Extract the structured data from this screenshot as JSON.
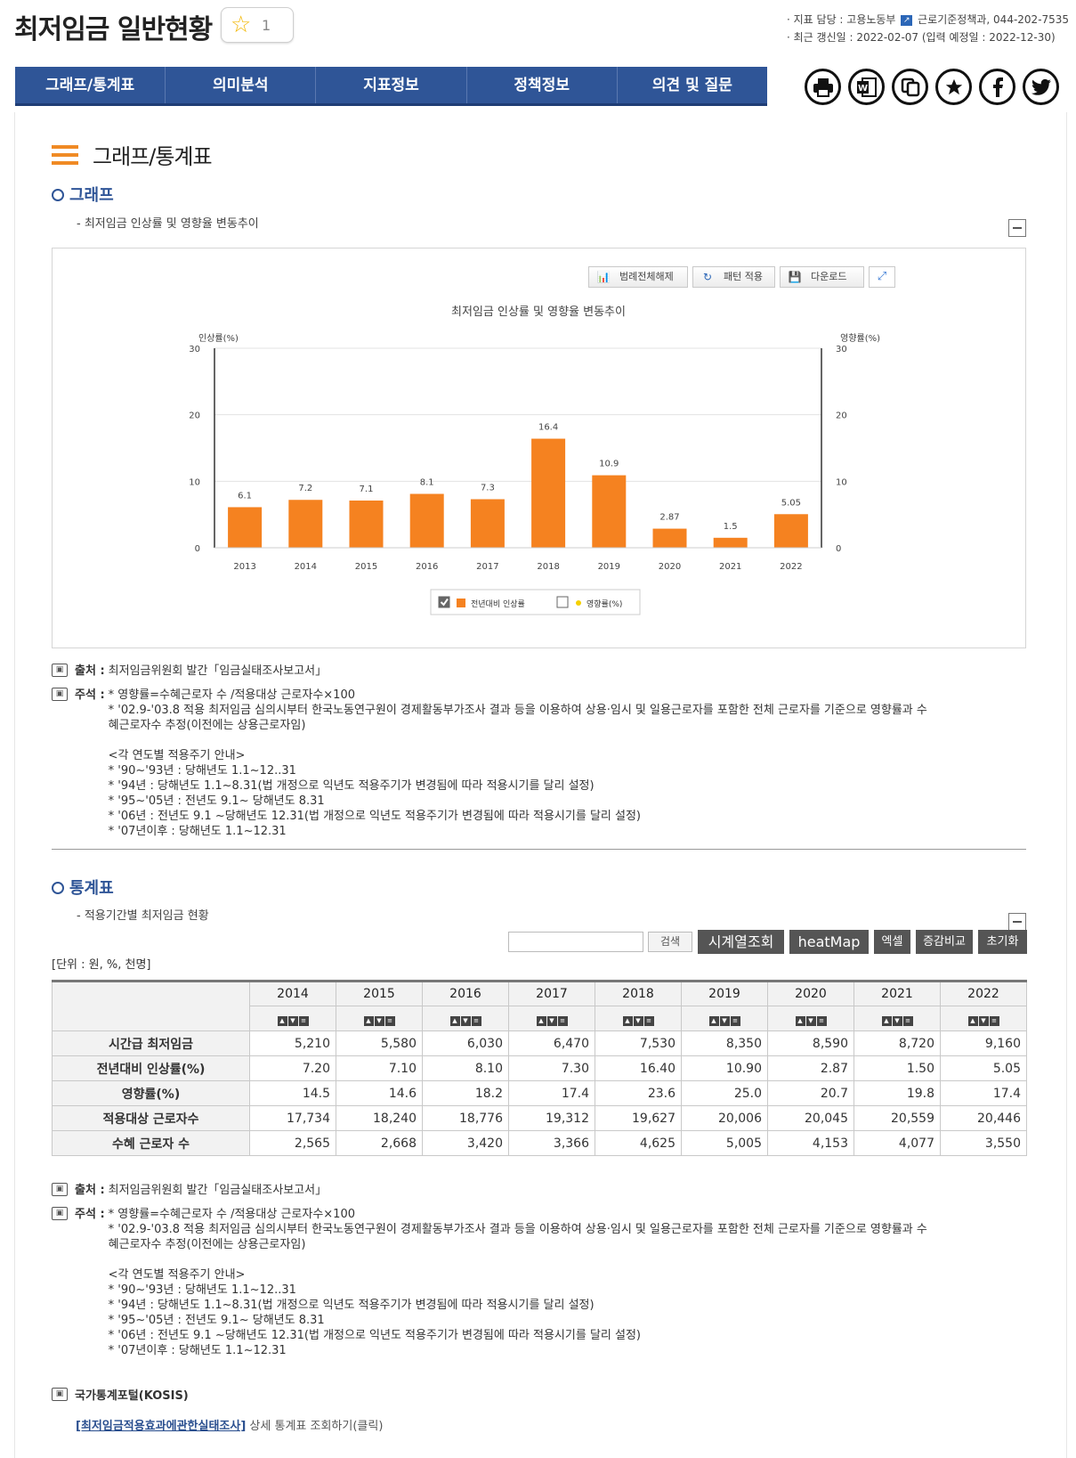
{
  "header": {
    "title": "최저임금 일반현황",
    "favorite_count": "1",
    "meta_line1_prefix": "· 지표 담당 : 고용노동부",
    "meta_line1_suffix": "근로기준정책과, 044-202-7535",
    "meta_line2": "· 최근 갱신일 : 2022-02-07 (입력 예정일 : 2022-12-30)"
  },
  "nav": {
    "tabs": [
      "그래프/통계표",
      "의미분석",
      "지표정보",
      "정책정보",
      "의견 및 질문"
    ]
  },
  "share_icons": [
    "print-icon",
    "word-icon",
    "copy-icon",
    "favorite-icon",
    "facebook-icon",
    "twitter-icon"
  ],
  "section_title": "그래프/통계표",
  "graph": {
    "heading": "그래프",
    "desc": "- 최저임금 인상률 및 영향율 변동추이",
    "tools": {
      "legend_off": "범례전체해제",
      "pattern": "패턴 적용",
      "download": "다운로드"
    }
  },
  "chart_data": {
    "type": "bar",
    "title": "최저임금 인상률 및 영향율 변동추이",
    "ylabel_left": "인상률(%)",
    "ylabel_right": "영향률(%)",
    "ylim": [
      0,
      30
    ],
    "yticks": [
      "0",
      "10",
      "20",
      "30"
    ],
    "categories": [
      "2013",
      "2014",
      "2015",
      "2016",
      "2017",
      "2018",
      "2019",
      "2020",
      "2021",
      "2022"
    ],
    "series": [
      {
        "name": "전년대비 인상률",
        "values": [
          6.1,
          7.2,
          7.1,
          8.1,
          7.3,
          16.4,
          10.9,
          2.87,
          1.5,
          5.05
        ],
        "labels": [
          "6.1",
          "7.2",
          "7.1",
          "8.1",
          "7.3",
          "16.4",
          "10.9",
          "2.87",
          "1.5",
          "5.05"
        ],
        "color": "#f58220",
        "checked": true
      },
      {
        "name": "영향률(%)",
        "color": "#f5d000",
        "checked": false
      }
    ],
    "grid": true,
    "legend_position": "bottom"
  },
  "notes": {
    "source_label": "출처 :",
    "source_text": "최저임금위원회 발간「임금실태조사보고서」",
    "note_label": "주석 :",
    "note_lines": [
      "* 영향률=수혜근로자 수 /적용대상 근로자수×100",
      "  * '02.9-'03.8 적용 최저임금 심의시부터 한국노동연구원이 경제활동부가조사 결과 등을 이용하여 상용·임시 및 일용근로자를 포함한 전체 근로자를 기준으로 영향률과 수",
      "  혜근로자수 추정(이전에는 상용근로자임)",
      "",
      "  <각 연도별 적용주기 안내>",
      "  * '90~'93년 : 당해년도 1.1~12..31",
      "  * '94년 : 당해년도 1.1~8.31(법 개정으로 익년도 적용주기가 변경됨에 따라 적용시기를 달리 설정)",
      "  * '95~'05년 : 전년도 9.1~ 당해년도 8.31",
      "  * '06년 : 전년도 9.1 ~당해년도 12.31(법 개정으로 익년도 적용주기가 변경됨에 따라 적용시기를 달리 설정)",
      "  * '07년이후 : 당해년도 1.1~12.31"
    ]
  },
  "table_section": {
    "heading": "통계표",
    "desc": "- 적용기간별 최저임금 현황",
    "search_placeholder": "",
    "buttons": {
      "search": "검색",
      "timeseries": "시계열조회",
      "heatmap": "heatMap",
      "excel": "엑셀",
      "compare": "증감비교",
      "reset": "초기화"
    },
    "unit": "[단위 : 원, %, 천명]",
    "columns": [
      "2014",
      "2015",
      "2016",
      "2017",
      "2018",
      "2019",
      "2020",
      "2021",
      "2022"
    ],
    "rows": [
      {
        "label": "시간급 최저임금",
        "values": [
          "5,210",
          "5,580",
          "6,030",
          "6,470",
          "7,530",
          "8,350",
          "8,590",
          "8,720",
          "9,160"
        ]
      },
      {
        "label": "전년대비 인상률(%)",
        "values": [
          "7.20",
          "7.10",
          "8.10",
          "7.30",
          "16.40",
          "10.90",
          "2.87",
          "1.50",
          "5.05"
        ]
      },
      {
        "label": "영향률(%)",
        "values": [
          "14.5",
          "14.6",
          "18.2",
          "17.4",
          "23.6",
          "25.0",
          "20.7",
          "19.8",
          "17.4"
        ]
      },
      {
        "label": "적용대상 근로자수",
        "values": [
          "17,734",
          "18,240",
          "18,776",
          "19,312",
          "19,627",
          "20,006",
          "20,045",
          "20,559",
          "20,446"
        ]
      },
      {
        "label": "수혜 근로자 수",
        "values": [
          "2,565",
          "2,668",
          "3,420",
          "3,366",
          "4,625",
          "5,005",
          "4,153",
          "4,077",
          "3,550"
        ]
      }
    ]
  },
  "kosis": {
    "label": "국가통계포털(KOSIS)",
    "link_text": "[최저임금적용효과에관한실태조사]",
    "link_suffix": " 상세 통계표 조회하기(클릭)"
  }
}
